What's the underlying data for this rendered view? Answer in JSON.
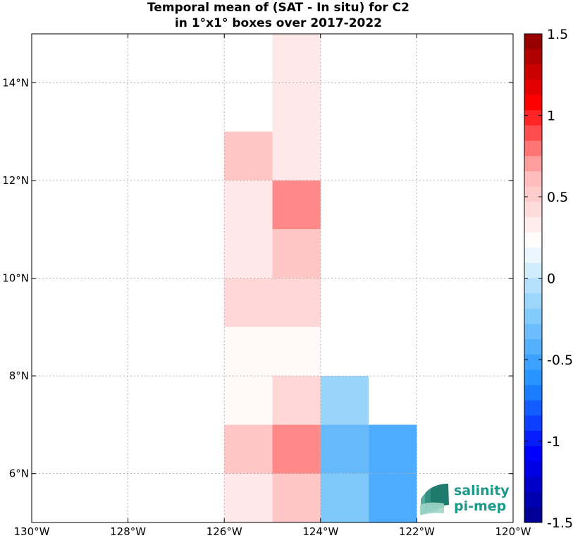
{
  "chart_data": {
    "type": "heatmap",
    "title": [
      "Temporal mean of (SAT - In situ) for C2",
      "in 1°x1° boxes over 2017-2022"
    ],
    "xlim": [
      -130,
      -120
    ],
    "ylim": [
      5,
      15
    ],
    "grid": true,
    "x_ticks": [
      {
        "value": -130,
        "label": "130°W"
      },
      {
        "value": -128,
        "label": "128°W"
      },
      {
        "value": -126,
        "label": "126°W"
      },
      {
        "value": -124,
        "label": "124°W"
      },
      {
        "value": -122,
        "label": "122°W"
      },
      {
        "value": -120,
        "label": "120°W"
      }
    ],
    "y_ticks": [
      {
        "value": 6,
        "label": "6°N"
      },
      {
        "value": 8,
        "label": "8°N"
      },
      {
        "value": 10,
        "label": "10°N"
      },
      {
        "value": 12,
        "label": "12°N"
      },
      {
        "value": 14,
        "label": "14°N"
      }
    ],
    "colorbar": {
      "range": [
        -1.5,
        1.5
      ],
      "ticks": [
        1.5,
        1,
        0.5,
        0,
        -0.5,
        -1,
        -1.5
      ],
      "tick_labels": [
        "1.5",
        "1",
        "0.5",
        "0",
        "-0.5",
        "-1",
        "-1.5"
      ]
    },
    "cells": [
      {
        "lon": -124.5,
        "lat": 14.5,
        "value": 0.35
      },
      {
        "lon": -124.5,
        "lat": 13.5,
        "value": 0.35
      },
      {
        "lon": -124.5,
        "lat": 12.5,
        "value": 0.35
      },
      {
        "lon": -125.5,
        "lat": 12.5,
        "value": 0.55
      },
      {
        "lon": -125.5,
        "lat": 11.5,
        "value": 0.35
      },
      {
        "lon": -124.5,
        "lat": 11.5,
        "value": 0.75
      },
      {
        "lon": -125.5,
        "lat": 10.5,
        "value": 0.35
      },
      {
        "lon": -124.5,
        "lat": 10.5,
        "value": 0.55
      },
      {
        "lon": -125.5,
        "lat": 9.5,
        "value": 0.45
      },
      {
        "lon": -124.5,
        "lat": 9.5,
        "value": 0.45
      },
      {
        "lon": -125.5,
        "lat": 8.5,
        "value": 0.25
      },
      {
        "lon": -124.5,
        "lat": 8.5,
        "value": 0.25
      },
      {
        "lon": -125.5,
        "lat": 7.5,
        "value": 0.25
      },
      {
        "lon": -124.5,
        "lat": 7.5,
        "value": 0.45
      },
      {
        "lon": -123.5,
        "lat": 7.5,
        "value": -0.15
      },
      {
        "lon": -125.5,
        "lat": 6.5,
        "value": 0.55
      },
      {
        "lon": -124.5,
        "lat": 6.5,
        "value": 0.75
      },
      {
        "lon": -123.5,
        "lat": 6.5,
        "value": -0.35
      },
      {
        "lon": -122.5,
        "lat": 6.5,
        "value": -0.45
      },
      {
        "lon": -125.5,
        "lat": 5.5,
        "value": 0.35
      },
      {
        "lon": -124.5,
        "lat": 5.5,
        "value": 0.55
      },
      {
        "lon": -123.5,
        "lat": 5.5,
        "value": -0.25
      },
      {
        "lon": -122.5,
        "lat": 5.5,
        "value": -0.45
      }
    ]
  },
  "logo": {
    "line1": "salinity",
    "line2": "pi-mep"
  },
  "colors": {
    "grid": "#a0a0a0",
    "axis": "#000000",
    "cmap_blue_to_red": [
      "#00008b",
      "#0000ff",
      "#1e90ff",
      "#87cefa",
      "#ffffff",
      "#ffb6b6",
      "#ff0000",
      "#8b0000"
    ],
    "logo_teal": "#1a9a8a"
  }
}
